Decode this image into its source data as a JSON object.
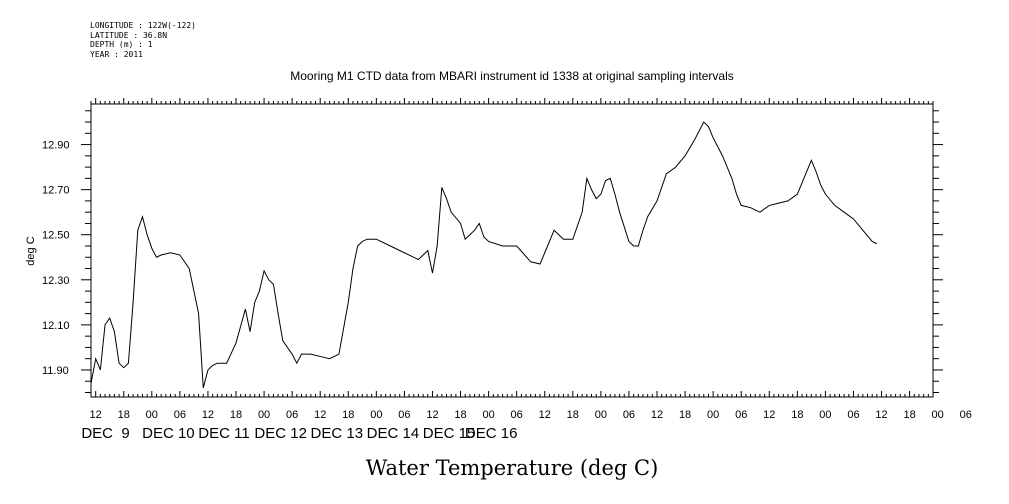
{
  "meta": {
    "longitude": "LONGITUDE : 122W(-122)",
    "latitude": "LATITUDE : 36.8N",
    "depth": "DEPTH (m) : 1",
    "year": "YEAR : 2011"
  },
  "chart_data": {
    "type": "line",
    "title": "Mooring M1 CTD data from MBARI instrument id 1338 at original sampling intervals",
    "xlabel": "Water Temperature (deg C)",
    "ylabel": "deg C",
    "xlim": [
      "2011-12-09T11:00",
      "2011-12-16T23:00"
    ],
    "ylim": [
      11.78,
      13.08
    ],
    "yticks": [
      "11.90",
      "12.10",
      "12.30",
      "12.50",
      "12.70",
      "12.90"
    ],
    "xtick_labels": [
      "12",
      "18",
      "00",
      "06",
      "12",
      "18",
      "00",
      "06",
      "12",
      "18",
      "00",
      "06",
      "12",
      "18",
      "00",
      "06",
      "12",
      "18",
      "00",
      "06",
      "12",
      "18",
      "00",
      "06",
      "12",
      "18",
      "00",
      "06",
      "12",
      "18",
      "00",
      "06"
    ],
    "day_labels": [
      "DEC  9",
      "DEC 10",
      "DEC 11",
      "DEC 12",
      "DEC 13",
      "DEC 14",
      "DEC 15",
      "DEC 16"
    ],
    "grid": false,
    "series": [
      {
        "color": "#000000",
        "x": [
          "2011-12-09T11:00",
          "2011-12-09T12:00",
          "2011-12-09T13:00",
          "2011-12-09T14:00",
          "2011-12-09T15:00",
          "2011-12-09T16:00",
          "2011-12-09T17:00",
          "2011-12-09T18:00",
          "2011-12-09T19:00",
          "2011-12-09T20:00",
          "2011-12-09T21:00",
          "2011-12-09T22:00",
          "2011-12-09T23:00",
          "2011-12-10T00:00",
          "2011-12-10T01:00",
          "2011-12-10T02:00",
          "2011-12-10T04:00",
          "2011-12-10T06:00",
          "2011-12-10T08:00",
          "2011-12-10T10:00",
          "2011-12-10T11:00",
          "2011-12-10T12:00",
          "2011-12-10T13:00",
          "2011-12-10T14:00",
          "2011-12-10T16:00",
          "2011-12-10T18:00",
          "2011-12-10T20:00",
          "2011-12-10T21:00",
          "2011-12-10T22:00",
          "2011-12-10T23:00",
          "2011-12-11T00:00",
          "2011-12-11T01:00",
          "2011-12-11T02:00",
          "2011-12-11T03:00",
          "2011-12-11T04:00",
          "2011-12-11T06:00",
          "2011-12-11T07:00",
          "2011-12-11T08:00",
          "2011-12-11T10:00",
          "2011-12-11T12:00",
          "2011-12-11T14:00",
          "2011-12-11T16:00",
          "2011-12-11T18:00",
          "2011-12-11T19:00",
          "2011-12-11T20:00",
          "2011-12-11T21:00",
          "2011-12-11T22:00",
          "2011-12-12T00:00",
          "2011-12-12T03:00",
          "2011-12-12T06:00",
          "2011-12-12T09:00",
          "2011-12-12T11:00",
          "2011-12-12T12:00",
          "2011-12-12T13:00",
          "2011-12-12T14:00",
          "2011-12-12T15:00",
          "2011-12-12T16:00",
          "2011-12-12T18:00",
          "2011-12-12T19:00",
          "2011-12-12T20:00",
          "2011-12-12T21:00",
          "2011-12-12T22:00",
          "2011-12-12T23:00",
          "2011-12-13T00:00",
          "2011-12-13T03:00",
          "2011-12-13T06:00",
          "2011-12-13T09:00",
          "2011-12-13T11:00",
          "2011-12-13T12:00",
          "2011-12-13T14:00",
          "2011-12-13T16:00",
          "2011-12-13T18:00",
          "2011-12-13T20:00",
          "2011-12-13T21:00",
          "2011-12-13T22:00",
          "2011-12-13T23:00",
          "2011-12-14T00:00",
          "2011-12-14T01:00",
          "2011-12-14T02:00",
          "2011-12-14T03:00",
          "2011-12-14T04:00",
          "2011-12-14T06:00",
          "2011-12-14T07:00",
          "2011-12-14T08:00",
          "2011-12-14T09:00",
          "2011-12-14T10:00",
          "2011-12-14T12:00",
          "2011-12-14T14:00",
          "2011-12-14T16:00",
          "2011-12-14T18:00",
          "2011-12-14T20:00",
          "2011-12-14T22:00",
          "2011-12-14T23:00",
          "2011-12-15T00:00",
          "2011-12-15T02:00",
          "2011-12-15T04:00",
          "2011-12-15T05:00",
          "2011-12-15T06:00",
          "2011-12-15T08:00",
          "2011-12-15T10:00",
          "2011-12-15T12:00",
          "2011-12-15T14:00",
          "2011-12-15T16:00",
          "2011-12-15T18:00",
          "2011-12-15T20:00",
          "2011-12-15T21:00",
          "2011-12-15T22:00",
          "2011-12-15T23:00",
          "2011-12-16T00:00",
          "2011-12-16T02:00",
          "2011-12-16T04:00",
          "2011-12-16T06:00",
          "2011-12-16T08:00",
          "2011-12-16T10:00",
          "2011-12-16T11:00"
        ],
        "values": [
          11.84,
          11.95,
          11.9,
          12.1,
          12.13,
          12.07,
          11.93,
          11.91,
          11.93,
          12.2,
          12.52,
          12.58,
          12.5,
          12.44,
          12.4,
          12.41,
          12.42,
          12.41,
          12.35,
          12.15,
          11.82,
          11.9,
          11.92,
          11.93,
          11.93,
          12.02,
          12.17,
          12.07,
          12.2,
          12.25,
          12.34,
          12.3,
          12.28,
          12.15,
          12.03,
          11.97,
          11.93,
          11.97,
          11.97,
          11.96,
          11.95,
          11.97,
          12.2,
          12.35,
          12.45,
          12.47,
          12.48,
          12.48,
          12.45,
          12.42,
          12.39,
          12.43,
          12.33,
          12.45,
          12.71,
          12.66,
          12.6,
          12.55,
          12.48,
          12.5,
          12.52,
          12.55,
          12.49,
          12.47,
          12.45,
          12.45,
          12.38,
          12.37,
          12.42,
          12.52,
          12.48,
          12.48,
          12.6,
          12.75,
          12.7,
          12.66,
          12.68,
          12.74,
          12.75,
          12.68,
          12.6,
          12.47,
          12.45,
          12.45,
          12.52,
          12.58,
          12.65,
          12.77,
          12.8,
          12.85,
          12.92,
          13.0,
          12.98,
          12.93,
          12.85,
          12.75,
          12.68,
          12.63,
          12.62,
          12.6,
          12.63,
          12.64,
          12.65,
          12.68,
          12.78,
          12.83,
          12.78,
          12.72,
          12.68,
          12.63,
          12.6,
          12.57,
          12.52,
          12.47,
          12.46
        ]
      }
    ]
  }
}
